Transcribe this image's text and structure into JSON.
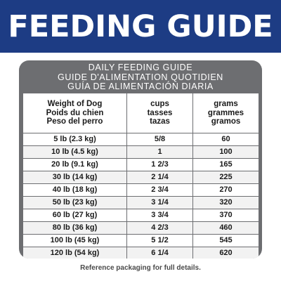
{
  "banner": {
    "title": "FEEDING GUIDE"
  },
  "table": {
    "heading_lines": [
      "DAILY FEEDING GUIDE",
      "GUIDE D'ALIMENTATION QUOTIDIEN",
      "GUÍA DE ALIMENTACIÓN DIARIA"
    ],
    "columns": {
      "weight": [
        "Weight of Dog",
        "Poids du chien",
        "Peso del perro"
      ],
      "cups": [
        "cups",
        "tasses",
        "tazas"
      ],
      "grams": [
        "grams",
        "grammes",
        "gramos"
      ]
    },
    "rows": [
      {
        "weight": "5 lb (2.3 kg)",
        "cups": "5/8",
        "grams": "60"
      },
      {
        "weight": "10 lb (4.5 kg)",
        "cups": "1",
        "grams": "100"
      },
      {
        "weight": "20 lb (9.1 kg)",
        "cups": "1 2/3",
        "grams": "165"
      },
      {
        "weight": "30 lb (14 kg)",
        "cups": "2 1/4",
        "grams": "225"
      },
      {
        "weight": "40 lb (18 kg)",
        "cups": "2 3/4",
        "grams": "270"
      },
      {
        "weight": "50 lb (23 kg)",
        "cups": "3 1/4",
        "grams": "320"
      },
      {
        "weight": "60 lb (27 kg)",
        "cups": "3 3/4",
        "grams": "370"
      },
      {
        "weight": "80 lb (36 kg)",
        "cups": "4 2/3",
        "grams": "460"
      },
      {
        "weight": "100 lb (45 kg)",
        "cups": "5 1/2",
        "grams": "545"
      },
      {
        "weight": "120 lb (54 kg)",
        "cups": "6 1/4",
        "grams": "620"
      }
    ]
  },
  "footer": {
    "note": "Reference packaging for full details."
  },
  "colors": {
    "banner": "#1d3c84",
    "table_frame": "#6d6e71"
  }
}
